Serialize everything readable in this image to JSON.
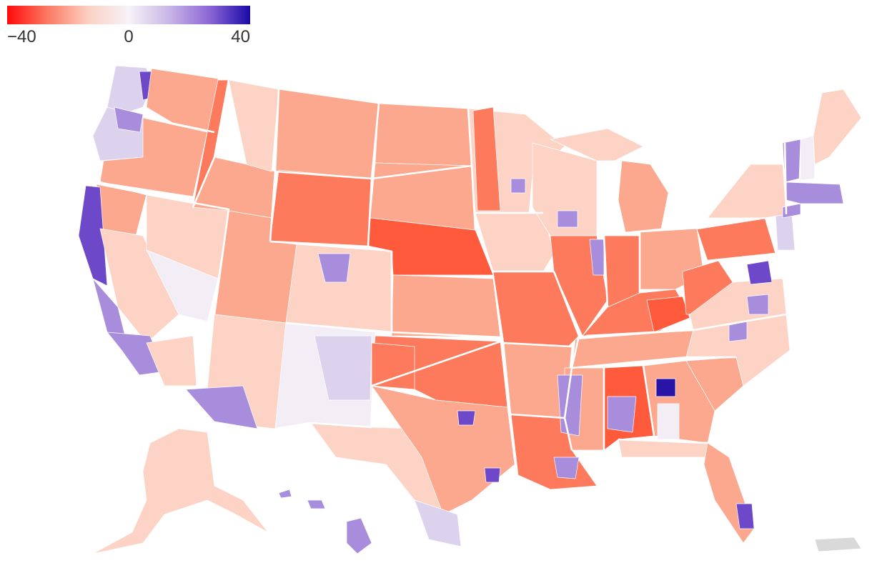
{
  "legend": {
    "min_label": "−40",
    "mid_label": "0",
    "max_label": "40",
    "colors": [
      "#ff0a0a",
      "#fb7a62",
      "#fcd0c3",
      "#f6f3f8",
      "#c9b6e6",
      "#8c66d6",
      "#1a0aa8"
    ]
  },
  "palette": {
    "r_deep": "#ff5a3c",
    "r_strong": "#fd7a5c",
    "r_mid": "#fba88e",
    "r_light": "#fdd3c5",
    "neutral": "#f3eef5",
    "d_light": "#dcd2ee",
    "d_mid": "#a98ddd",
    "d_strong": "#6d48c9",
    "d_deep": "#2a14a6",
    "no_data": "#d9d9d9"
  }
}
